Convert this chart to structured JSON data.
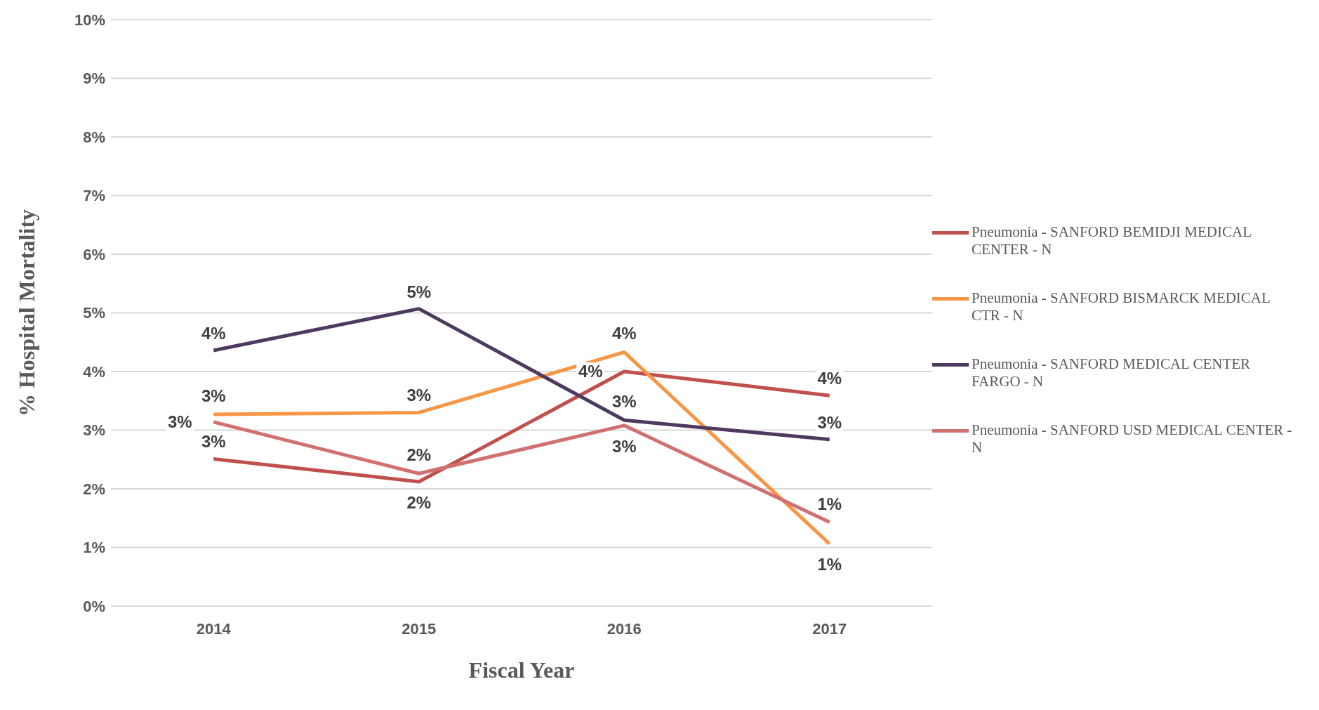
{
  "chart_data": {
    "type": "line",
    "xlabel": "Fiscal Year",
    "ylabel": "% Hospital Mortality",
    "categories": [
      "2014",
      "2015",
      "2016",
      "2017"
    ],
    "series": [
      {
        "name": "Pneumonia - SANFORD BEMIDJI MEDICAL CENTER - N",
        "color": "#c0504d",
        "values": [
          2.51,
          2.12,
          4.0,
          3.59
        ],
        "value_labels": [
          "3%",
          "2%",
          "4%",
          "4%"
        ]
      },
      {
        "name": "Pneumonia - SANFORD BISMARCK MEDICAL CTR - N",
        "color": "#f79646",
        "values": [
          3.27,
          3.3,
          4.33,
          1.06
        ],
        "value_labels": [
          "3%",
          "3%",
          "4%",
          "1%"
        ]
      },
      {
        "name": "Pneumonia - SANFORD MEDICAL CENTER FARGO - N",
        "color": "#4f3a5f",
        "values": [
          4.36,
          5.07,
          3.17,
          2.84
        ],
        "value_labels": [
          "4%",
          "5%",
          "3%",
          "3%"
        ]
      },
      {
        "name": "Pneumonia - SANFORD USD MEDICAL CENTER - N",
        "color": "#d07070",
        "values": [
          3.14,
          2.26,
          3.08,
          1.43
        ],
        "value_labels": [
          "3%",
          "2%",
          "3%",
          "1%"
        ]
      }
    ],
    "ylim": [
      0,
      10
    ],
    "yticks": [
      {
        "value": 0,
        "label": "0%"
      },
      {
        "value": 1,
        "label": "1%"
      },
      {
        "value": 2,
        "label": "2%"
      },
      {
        "value": 3,
        "label": "3%"
      },
      {
        "value": 4,
        "label": "4%"
      },
      {
        "value": 5,
        "label": "5%"
      },
      {
        "value": 6,
        "label": "6%"
      },
      {
        "value": 7,
        "label": "7%"
      },
      {
        "value": 8,
        "label": "8%"
      },
      {
        "value": 9,
        "label": "9%"
      },
      {
        "value": 10,
        "label": "10%"
      }
    ],
    "grid": "y",
    "legend": "right",
    "marker": "none",
    "line_style": "solid"
  }
}
